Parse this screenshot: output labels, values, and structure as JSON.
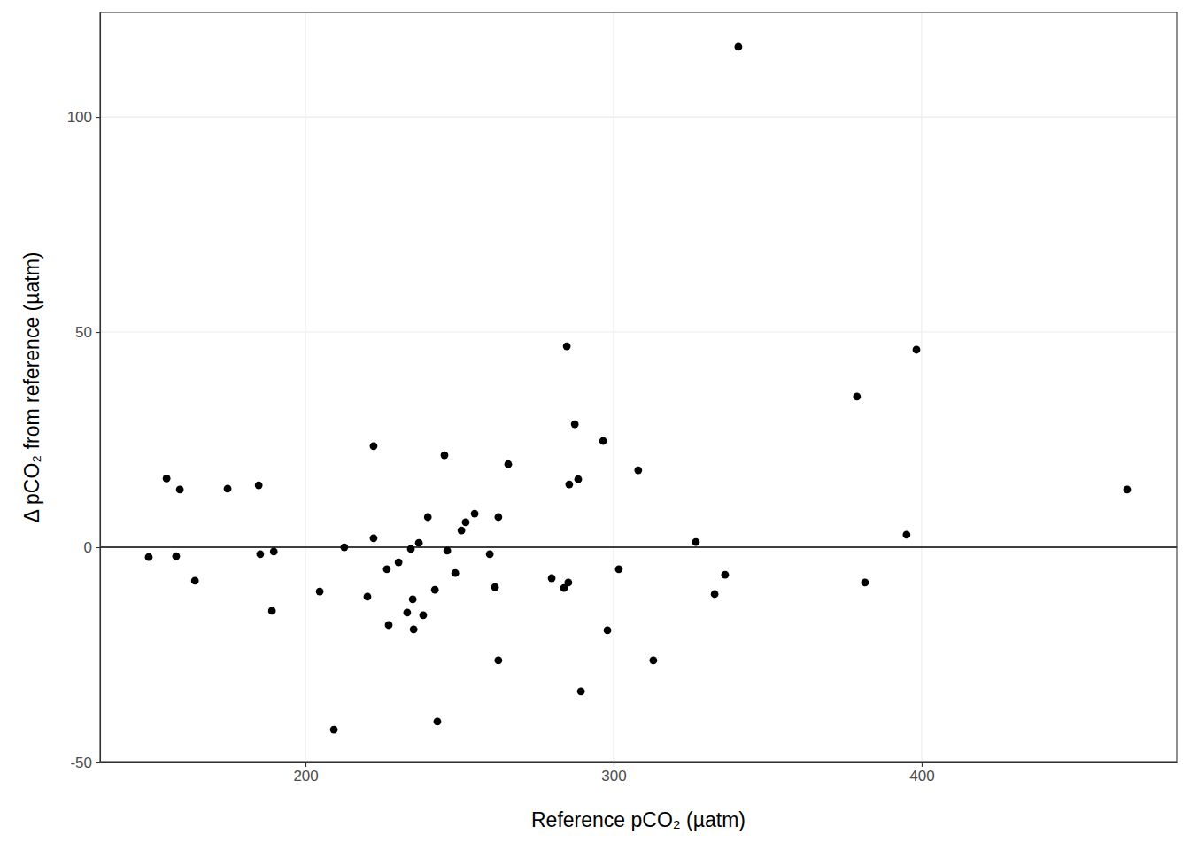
{
  "chart_data": {
    "type": "scatter",
    "x_label": "Reference pCO₂ (µatm)",
    "y_label": "Δ pCO₂ from reference (µatm)",
    "x": [
      149.1,
      154.9,
      158.0,
      159.2,
      164.1,
      174.7,
      184.8,
      185.3,
      189.1,
      189.7,
      204.6,
      209.2,
      212.6,
      220.1,
      222.1,
      222.1,
      226.4,
      227.0,
      230.2,
      233.0,
      234.2,
      234.8,
      235.1,
      236.8,
      238.2,
      239.7,
      242.0,
      242.8,
      245.1,
      246.0,
      248.6,
      250.6,
      252.0,
      254.9,
      259.8,
      261.5,
      262.6,
      262.6,
      265.8,
      279.9,
      283.9,
      284.8,
      285.3,
      285.6,
      287.4,
      288.5,
      289.4,
      296.6,
      298.0,
      301.7,
      308.0,
      312.9,
      326.7,
      332.8,
      336.2,
      340.5,
      379.0,
      381.6,
      395.1,
      398.3,
      466.7
    ],
    "values": [
      -2.3,
      16.0,
      -2.1,
      13.4,
      -7.8,
      13.6,
      14.4,
      -1.6,
      -14.8,
      -1.0,
      -10.3,
      -42.4,
      0.0,
      -11.5,
      23.5,
      2.1,
      -5.1,
      -18.1,
      -3.5,
      -15.2,
      -0.4,
      -12.1,
      -19.1,
      1.0,
      -15.8,
      7.0,
      -9.9,
      -40.5,
      21.4,
      -0.8,
      -6.0,
      3.9,
      5.8,
      7.8,
      -1.6,
      -9.3,
      7.0,
      -26.3,
      19.3,
      -7.2,
      -9.5,
      46.7,
      -8.2,
      14.6,
      28.6,
      15.8,
      -33.5,
      24.7,
      -19.3,
      -5.1,
      17.9,
      -26.3,
      1.2,
      -10.9,
      -6.4,
      116.3,
      35.0,
      -8.2,
      2.9,
      45.9,
      13.4
    ],
    "xlim": [
      133.3,
      482.8
    ],
    "ylim": [
      -50,
      124.3
    ],
    "xticks": [
      200,
      300,
      400
    ],
    "yticks": [
      -50,
      0,
      50,
      100
    ],
    "hline": 0,
    "color": "#000000",
    "marker": "circle",
    "grid": true
  }
}
